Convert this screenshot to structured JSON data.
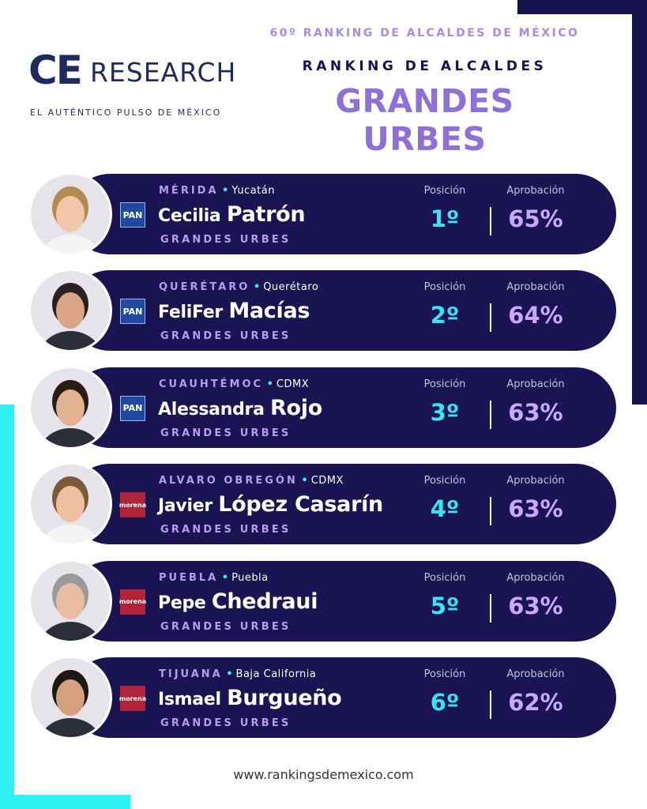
{
  "header": {
    "edition": "60º RANKING DE ALCALDES DE MÉXICO",
    "kicker": "RANKING DE ALCALDES",
    "title": "GRANDES URBES"
  },
  "logo": {
    "mark": "CE",
    "word": "RESEARCH",
    "tagline": "EL AUTÉNTICO PULSO DE MÉXICO"
  },
  "rows": [
    {
      "city": "MÉRIDA",
      "state": "Yucatán",
      "first_name": "Cecilia",
      "last_name": "Patrón",
      "category": "GRANDES URBES",
      "party": "PAN",
      "position_label": "Posición",
      "position": "1º",
      "approval_label": "Aprobación",
      "approval": "65%"
    },
    {
      "city": "QUERÉTARO",
      "state": "Querétaro",
      "first_name": "FeliFer",
      "last_name": "Macías",
      "category": "GRANDES URBES",
      "party": "PAN",
      "position_label": "Posición",
      "position": "2º",
      "approval_label": "Aprobación",
      "approval": "64%"
    },
    {
      "city": "CUAUHTÉMOC",
      "state": "CDMX",
      "first_name": "Alessandra",
      "last_name": "Rojo",
      "category": "GRANDES URBES",
      "party": "PAN",
      "position_label": "Posición",
      "position": "3º",
      "approval_label": "Aprobación",
      "approval": "63%"
    },
    {
      "city": "ALVARO OBREGÓN",
      "state": "CDMX",
      "first_name": "Javier",
      "last_name": "López Casarín",
      "category": "GRANDES URBES",
      "party": "morena",
      "position_label": "Posición",
      "position": "4º",
      "approval_label": "Aprobación",
      "approval": "63%"
    },
    {
      "city": "PUEBLA",
      "state": "Puebla",
      "first_name": "Pepe",
      "last_name": "Chedraui",
      "category": "GRANDES URBES",
      "party": "morena",
      "position_label": "Posición",
      "position": "5º",
      "approval_label": "Aprobación",
      "approval": "63%"
    },
    {
      "city": "TIJUANA",
      "state": "Baja California",
      "first_name": "Ismael",
      "last_name": "Burgueño",
      "category": "GRANDES URBES",
      "party": "morena",
      "position_label": "Posición",
      "position": "6º",
      "approval_label": "Aprobación",
      "approval": "62%"
    }
  ],
  "footer": {
    "url": "www.rankingsdemexico.com"
  }
}
